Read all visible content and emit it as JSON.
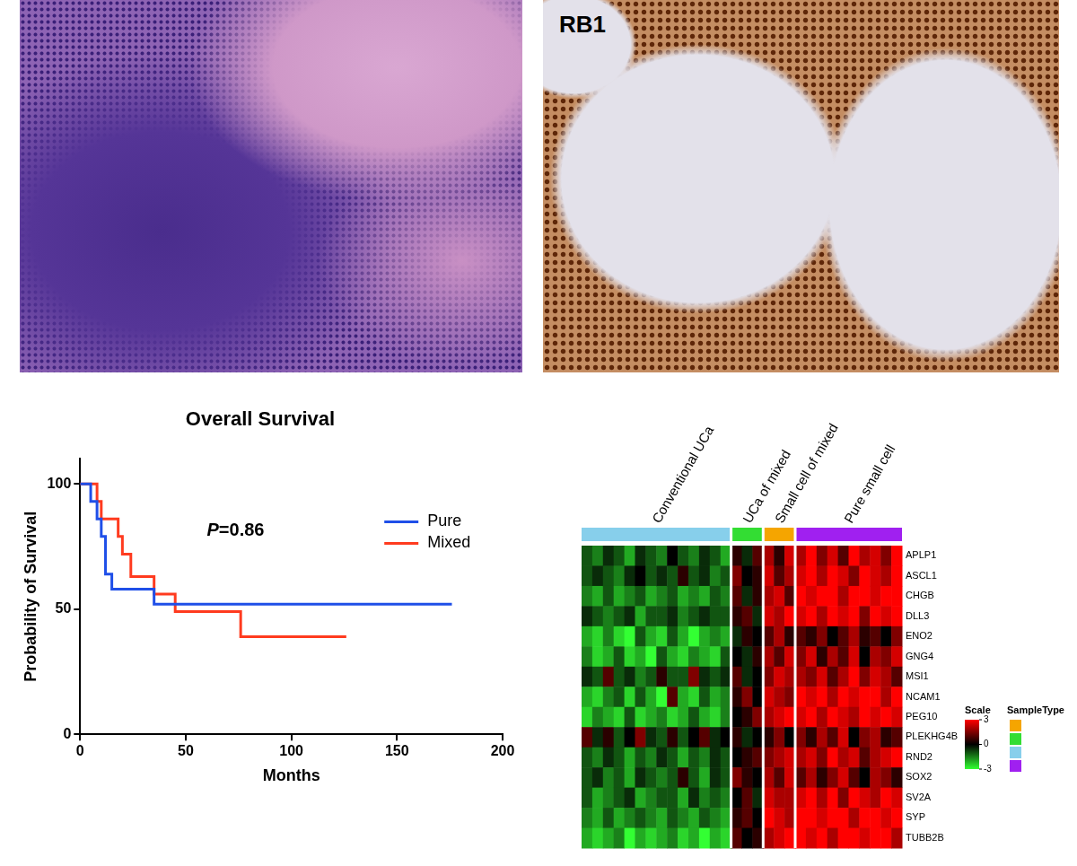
{
  "images": [
    {
      "label": null
    },
    {
      "label": "RB1"
    }
  ],
  "chart_data": [
    {
      "type": "line",
      "title": "Overall Survival",
      "x_label": "Months",
      "y_label": "Probability of Survival",
      "xlim": [
        0,
        200
      ],
      "xticks": [
        0,
        50,
        100,
        150,
        200
      ],
      "ylim": [
        0,
        110
      ],
      "yticks": [
        0,
        50,
        100
      ],
      "grid": false,
      "line_style": "step",
      "legend": "upper right",
      "annotations": [
        "P=0.86"
      ],
      "series": [
        {
          "name": "Pure",
          "color": "#1f4fe8",
          "x": [
            0,
            5,
            8,
            10,
            12,
            15,
            35,
            176
          ],
          "values": [
            100,
            93,
            86,
            79,
            64,
            58,
            52,
            52
          ]
        },
        {
          "name": "Mixed",
          "color": "#ff3b1f",
          "x": [
            0,
            8,
            10,
            18,
            20,
            24,
            35,
            45,
            76,
            126
          ],
          "values": [
            100,
            93,
            86,
            79,
            72,
            63,
            56,
            49,
            39,
            39
          ]
        }
      ]
    },
    {
      "type": "heatmap",
      "rows": [
        "APLP1",
        "ASCL1",
        "CHGB",
        "DLL3",
        "ENO2",
        "GNG4",
        "MSI1",
        "NCAM1",
        "PEG10",
        "PLEKHG4B",
        "RND2",
        "SOX2",
        "SV2A",
        "SYP",
        "TUBB2B"
      ],
      "groups": [
        {
          "name": "Conventional UCa",
          "color": "#87cfeb",
          "cells": [
            [
              -1,
              -1.5,
              -0.5,
              -1,
              -2,
              -0.5,
              -1,
              -1.5,
              0,
              -1,
              -1.5,
              -0.5,
              -1,
              -2
            ],
            [
              -1,
              -0.5,
              -1,
              -1.5,
              -0.5,
              0,
              -1,
              -0.5,
              -1,
              0.5,
              -1,
              -0.5,
              -1.5,
              -1
            ],
            [
              -1.5,
              -2,
              -1,
              -2,
              -1.5,
              -1,
              -2,
              -1.5,
              -1,
              -2,
              -1.5,
              -2,
              -1,
              -1.5
            ],
            [
              -0.5,
              -1,
              -1.5,
              -1,
              -0.5,
              -2,
              -1,
              -1,
              -0.5,
              -1.5,
              -1,
              -0.5,
              -1,
              -1
            ],
            [
              -2,
              -2.5,
              -1.5,
              -2.5,
              -3,
              -1,
              -2,
              -2.5,
              -1,
              -2,
              -3,
              -2,
              -1.5,
              -2
            ],
            [
              -1.5,
              -2.5,
              -2,
              -1,
              -2.5,
              -2,
              -3,
              -1,
              -2,
              -2.5,
              -1.5,
              -2,
              -2.5,
              -1
            ],
            [
              -0.5,
              -1,
              1,
              -1,
              -0.5,
              -1.5,
              -1,
              0.5,
              -1,
              -1,
              1.5,
              -0.5,
              -1,
              -0.5
            ],
            [
              -2,
              -2.5,
              -1.5,
              -1,
              -2.5,
              -1,
              -2,
              -3,
              1,
              -2,
              -2.5,
              -1,
              -2,
              -1.5
            ],
            [
              -2.5,
              -1.5,
              -2,
              -2.5,
              -1,
              -2.5,
              -2,
              -1.5,
              -2.5,
              -2,
              -1,
              -2,
              -2.5,
              -1.5
            ],
            [
              1,
              -0.5,
              0.5,
              -1,
              0,
              1.5,
              -0.5,
              -1,
              0.5,
              -1,
              0,
              1,
              -0.5,
              0
            ],
            [
              -1,
              -1.5,
              -0.5,
              -1,
              -2,
              -1,
              -1.5,
              -0.5,
              -1,
              -2,
              -1,
              -1.5,
              -0.5,
              -1
            ],
            [
              -1,
              -0.5,
              -1.5,
              -1,
              -2,
              -0.5,
              -1,
              -1.5,
              -1,
              0.5,
              -1,
              -2,
              -0.5,
              -1
            ],
            [
              -1,
              -2,
              -1.5,
              -1,
              -0.5,
              -2,
              -1.5,
              -1,
              -1,
              -2,
              -0.5,
              -1.5,
              -1,
              -1.5
            ],
            [
              -1.5,
              -2,
              -1,
              -2,
              -1.5,
              -1,
              -1.5,
              -2,
              -1,
              -1.5,
              -2,
              -1,
              -1.5,
              -2
            ],
            [
              -2,
              -2.5,
              -2,
              -1.5,
              -3,
              -2,
              -2.5,
              -2,
              -1.5,
              -2.5,
              -2,
              -3,
              -2,
              -2.5
            ]
          ]
        },
        {
          "name": "UCa of mixed",
          "color": "#33dd33",
          "cells": [
            [
              0.5,
              -0.5,
              1
            ],
            [
              1.5,
              0,
              0.5
            ],
            [
              1,
              -0.5,
              0.5
            ],
            [
              0.5,
              1,
              -0.5
            ],
            [
              -0.5,
              0.5,
              0
            ],
            [
              0,
              -0.5,
              0.5
            ],
            [
              1,
              -0.5,
              0
            ],
            [
              0.5,
              1.5,
              0
            ],
            [
              0,
              0.5,
              1.5
            ],
            [
              0.5,
              -0.5,
              0
            ],
            [
              0,
              0.5,
              1
            ],
            [
              1.5,
              0.5,
              0
            ],
            [
              0,
              1,
              -0.5
            ],
            [
              0.5,
              1,
              0
            ],
            [
              1,
              0,
              0.5
            ]
          ]
        },
        {
          "name": "Small cell of mixed",
          "color": "#f5a500",
          "cells": [
            [
              2,
              0.5,
              2.5
            ],
            [
              2.5,
              1,
              2
            ],
            [
              2,
              2.5,
              1
            ],
            [
              2.5,
              2,
              3
            ],
            [
              1,
              2,
              0.5
            ],
            [
              2,
              1,
              2.5
            ],
            [
              1.5,
              2.5,
              2
            ],
            [
              2.5,
              2,
              1.5
            ],
            [
              2,
              2.5,
              3
            ],
            [
              0.5,
              1.5,
              0
            ],
            [
              1.5,
              2,
              2.5
            ],
            [
              2,
              1,
              2.5
            ],
            [
              2.5,
              2,
              2
            ],
            [
              3,
              2.5,
              2
            ],
            [
              2,
              2.5,
              3
            ]
          ]
        },
        {
          "name": "Pure small cell",
          "color": "#a020f0",
          "cells": [
            [
              2,
              3,
              1.5,
              2.5,
              1,
              3,
              2,
              2.5,
              1.5,
              3
            ],
            [
              2.5,
              3,
              2,
              3,
              2.5,
              1.5,
              3,
              2.5,
              2,
              3
            ],
            [
              3,
              2.5,
              3,
              3,
              2,
              3,
              3,
              2.5,
              3,
              3
            ],
            [
              2.5,
              3,
              2,
              3,
              2.5,
              3,
              1.5,
              3,
              2.5,
              3
            ],
            [
              1,
              0.5,
              1.5,
              0,
              1,
              2,
              0.5,
              1,
              0,
              1.5
            ],
            [
              1.5,
              2.5,
              0.5,
              2,
              1,
              2.5,
              0,
              2,
              1.5,
              2.5
            ],
            [
              2,
              1.5,
              2.5,
              1,
              2,
              3,
              1.5,
              2.5,
              2,
              1
            ],
            [
              3,
              2.5,
              3,
              2,
              3,
              2.5,
              3,
              3,
              2,
              3
            ],
            [
              2.5,
              3,
              2,
              3,
              2.5,
              2,
              3,
              2.5,
              3,
              2.5
            ],
            [
              1.5,
              0.5,
              2,
              1,
              2.5,
              0,
              1.5,
              2,
              0.5,
              1
            ],
            [
              2,
              2.5,
              1.5,
              3,
              2,
              2.5,
              1,
              2,
              2.5,
              3
            ],
            [
              1,
              2,
              0.5,
              1.5,
              2.5,
              1,
              0,
              2,
              1.5,
              0.5
            ],
            [
              2.5,
              3,
              2,
              3,
              1.5,
              3,
              2.5,
              2,
              3,
              2.5
            ],
            [
              3,
              3,
              2.5,
              3,
              3,
              2,
              3,
              3,
              2.5,
              3
            ],
            [
              3,
              2.5,
              3,
              2,
              3,
              3,
              2.5,
              3,
              3,
              2
            ]
          ]
        }
      ],
      "colorbar": {
        "title": "Scale",
        "range": [
          -3,
          3
        ],
        "ticks": [
          3,
          0,
          -3
        ],
        "colors": [
          "#33ff33",
          "#000000",
          "#ff0000"
        ]
      },
      "sample_type_legend": {
        "title": "SampleType",
        "colors": [
          "#f5a500",
          "#33dd33",
          "#87cfeb",
          "#a020f0"
        ]
      }
    }
  ]
}
